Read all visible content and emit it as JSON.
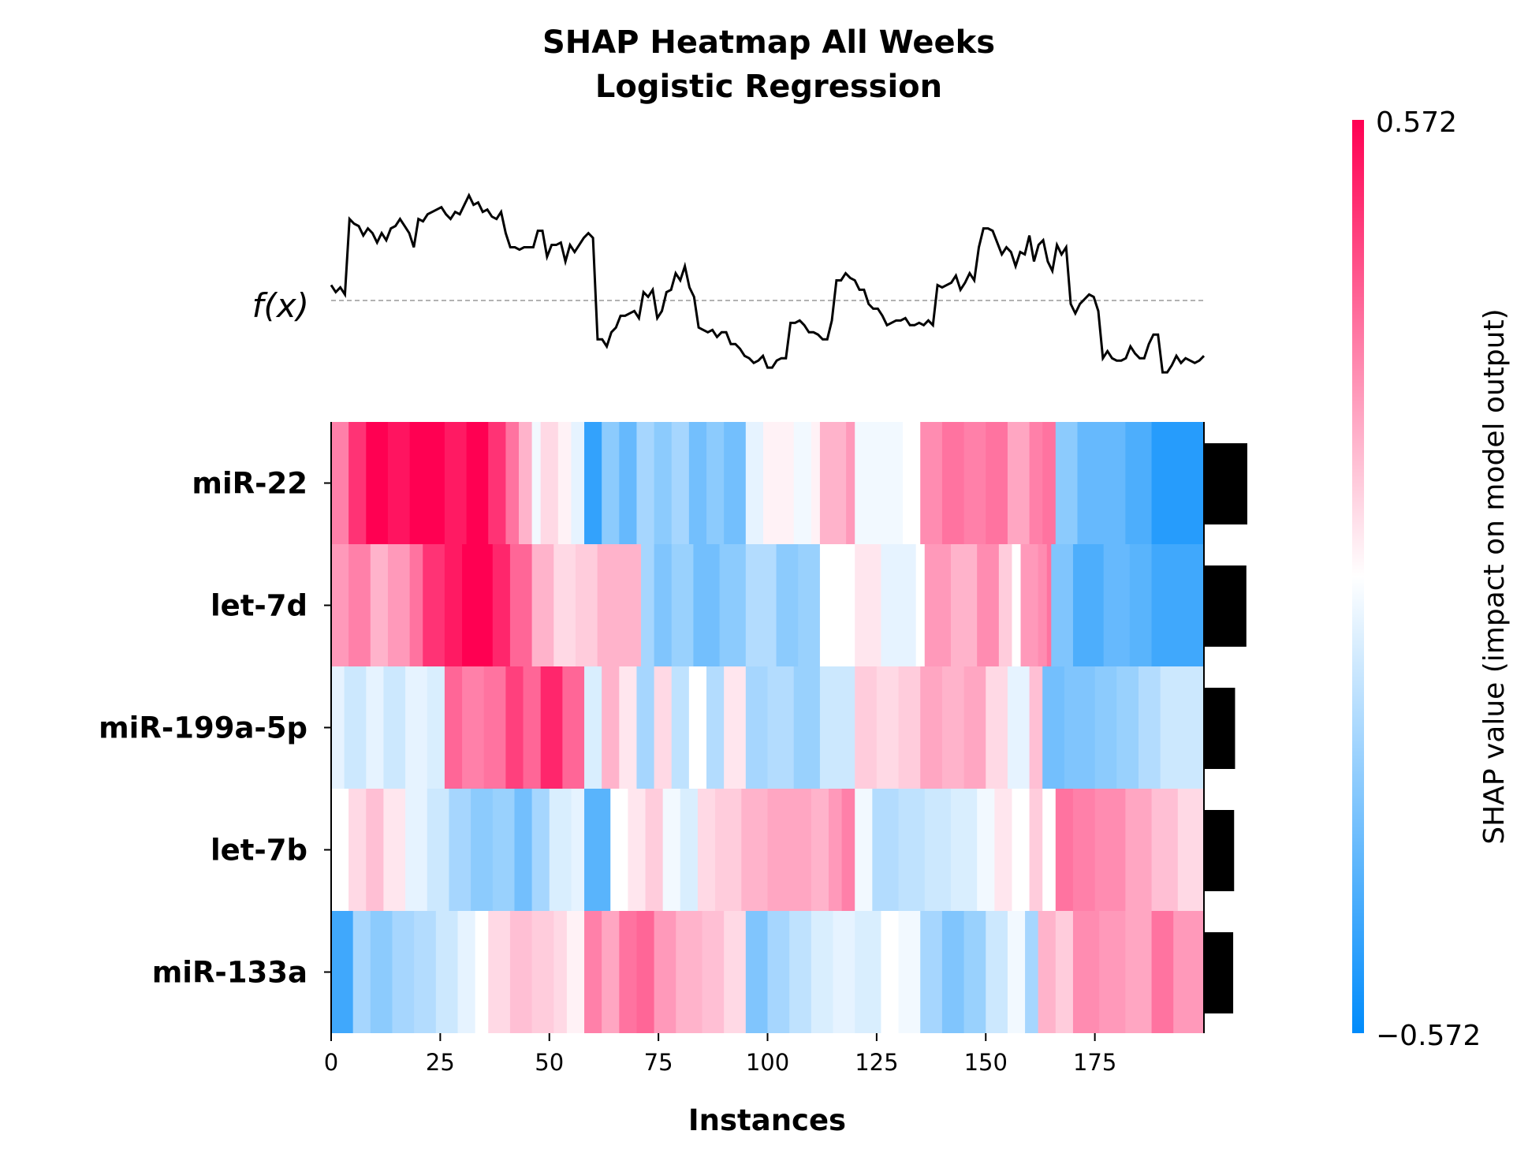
{
  "chart_data": {
    "type": "heatmap",
    "title": [
      "SHAP Heatmap All Weeks",
      "Logistic Regression"
    ],
    "xlabel": "Instances",
    "fx_label": "f(x)",
    "xlim": [
      0,
      200
    ],
    "xticks": [
      0,
      25,
      50,
      75,
      100,
      125,
      150,
      175
    ],
    "features": [
      "miR-22",
      "let-7d",
      "miR-199a-5p",
      "let-7b",
      "miR-133a"
    ],
    "importance": [
      0.46,
      0.45,
      0.33,
      0.32,
      0.31
    ],
    "colorbar": {
      "min": -0.572,
      "max": 0.572,
      "min_label": "−0.572",
      "max_label": "0.572",
      "label": "SHAP value (impact on model output)",
      "colors": [
        "#008bfb",
        "#ffffff",
        "#ff0052"
      ]
    },
    "segments": [
      [
        [
          0,
          0.5
        ],
        [
          4,
          0.8
        ],
        [
          8,
          1.0
        ],
        [
          13,
          0.92
        ],
        [
          18,
          1.0
        ],
        [
          26,
          0.9
        ],
        [
          31,
          1.0
        ],
        [
          36,
          0.8
        ],
        [
          40,
          0.55
        ],
        [
          43,
          0.3
        ],
        [
          46,
          -0.05
        ],
        [
          48,
          0.15
        ],
        [
          52,
          0.05
        ],
        [
          55,
          -0.1
        ],
        [
          58,
          -0.8
        ],
        [
          62,
          -0.45
        ],
        [
          66,
          -0.6
        ],
        [
          70,
          -0.35
        ],
        [
          74,
          -0.45
        ],
        [
          78,
          -0.35
        ],
        [
          82,
          -0.55
        ],
        [
          86,
          -0.45
        ],
        [
          90,
          -0.55
        ],
        [
          95,
          -0.1
        ],
        [
          99,
          0.05
        ],
        [
          106,
          -0.05
        ],
        [
          110,
          0.05
        ],
        [
          112,
          0.3
        ],
        [
          118,
          0.4
        ],
        [
          120,
          -0.05
        ],
        [
          126,
          -0.05
        ],
        [
          131,
          0.0
        ],
        [
          135,
          0.45
        ],
        [
          140,
          0.55
        ],
        [
          145,
          0.5
        ],
        [
          150,
          0.55
        ],
        [
          155,
          0.35
        ],
        [
          160,
          0.5
        ],
        [
          163,
          0.55
        ],
        [
          166,
          -0.45
        ],
        [
          171,
          -0.6
        ],
        [
          177,
          -0.6
        ],
        [
          182,
          -0.7
        ],
        [
          188,
          -0.85
        ],
        [
          200,
          -0.85
        ]
      ],
      [
        [
          0,
          0.4
        ],
        [
          4,
          0.5
        ],
        [
          9,
          0.3
        ],
        [
          13,
          0.4
        ],
        [
          18,
          0.55
        ],
        [
          21,
          0.8
        ],
        [
          26,
          0.9
        ],
        [
          30,
          1.0
        ],
        [
          37,
          0.85
        ],
        [
          41,
          0.6
        ],
        [
          46,
          0.3
        ],
        [
          51,
          0.15
        ],
        [
          56,
          0.2
        ],
        [
          61,
          0.3
        ],
        [
          71,
          -0.35
        ],
        [
          74,
          -0.5
        ],
        [
          78,
          -0.4
        ],
        [
          83,
          -0.55
        ],
        [
          89,
          -0.45
        ],
        [
          95,
          -0.3
        ],
        [
          102,
          -0.45
        ],
        [
          107,
          -0.4
        ],
        [
          112,
          0.0
        ],
        [
          120,
          0.1
        ],
        [
          126,
          -0.1
        ],
        [
          134,
          0.0
        ],
        [
          136,
          0.4
        ],
        [
          142,
          0.3
        ],
        [
          148,
          0.45
        ],
        [
          153,
          0.2
        ],
        [
          156,
          0.0
        ],
        [
          158,
          0.4
        ],
        [
          162,
          0.45
        ],
        [
          164,
          0.55
        ],
        [
          165,
          -0.5
        ],
        [
          170,
          -0.7
        ],
        [
          177,
          -0.6
        ],
        [
          183,
          -0.65
        ],
        [
          188,
          -0.75
        ],
        [
          200,
          -0.75
        ]
      ],
      [
        [
          0,
          -0.1
        ],
        [
          3,
          -0.2
        ],
        [
          8,
          -0.1
        ],
        [
          12,
          -0.2
        ],
        [
          17,
          -0.1
        ],
        [
          22,
          -0.15
        ],
        [
          26,
          0.6
        ],
        [
          30,
          0.5
        ],
        [
          35,
          0.55
        ],
        [
          40,
          0.75
        ],
        [
          44,
          0.6
        ],
        [
          48,
          0.85
        ],
        [
          53,
          0.6
        ],
        [
          58,
          -0.15
        ],
        [
          62,
          0.3
        ],
        [
          66,
          0.1
        ],
        [
          70,
          -0.35
        ],
        [
          74,
          0.15
        ],
        [
          78,
          -0.25
        ],
        [
          82,
          0.0
        ],
        [
          86,
          -0.3
        ],
        [
          90,
          0.1
        ],
        [
          95,
          -0.35
        ],
        [
          100,
          -0.3
        ],
        [
          106,
          -0.4
        ],
        [
          112,
          -0.2
        ],
        [
          120,
          0.2
        ],
        [
          125,
          0.15
        ],
        [
          130,
          0.2
        ],
        [
          135,
          0.35
        ],
        [
          140,
          0.3
        ],
        [
          145,
          0.35
        ],
        [
          150,
          0.15
        ],
        [
          155,
          -0.1
        ],
        [
          160,
          0.25
        ],
        [
          163,
          -0.55
        ],
        [
          168,
          -0.5
        ],
        [
          175,
          -0.45
        ],
        [
          180,
          -0.4
        ],
        [
          185,
          -0.3
        ],
        [
          190,
          -0.2
        ],
        [
          200,
          -0.2
        ]
      ],
      [
        [
          0,
          0.0
        ],
        [
          4,
          0.15
        ],
        [
          8,
          0.25
        ],
        [
          12,
          0.1
        ],
        [
          17,
          -0.1
        ],
        [
          22,
          -0.2
        ],
        [
          27,
          -0.35
        ],
        [
          32,
          -0.45
        ],
        [
          37,
          -0.4
        ],
        [
          42,
          -0.55
        ],
        [
          46,
          -0.35
        ],
        [
          50,
          -0.15
        ],
        [
          55,
          -0.1
        ],
        [
          58,
          -0.65
        ],
        [
          64,
          0.0
        ],
        [
          68,
          0.1
        ],
        [
          72,
          0.2
        ],
        [
          76,
          -0.05
        ],
        [
          80,
          -0.15
        ],
        [
          84,
          0.15
        ],
        [
          88,
          0.2
        ],
        [
          94,
          0.3
        ],
        [
          100,
          0.35
        ],
        [
          106,
          0.35
        ],
        [
          110,
          0.3
        ],
        [
          114,
          0.4
        ],
        [
          117,
          0.5
        ],
        [
          120,
          -0.05
        ],
        [
          124,
          -0.3
        ],
        [
          130,
          -0.25
        ],
        [
          136,
          -0.2
        ],
        [
          142,
          -0.15
        ],
        [
          148,
          -0.05
        ],
        [
          152,
          0.1
        ],
        [
          156,
          0.0
        ],
        [
          160,
          0.2
        ],
        [
          163,
          0.0
        ],
        [
          166,
          0.55
        ],
        [
          170,
          0.5
        ],
        [
          175,
          0.45
        ],
        [
          182,
          0.35
        ],
        [
          188,
          0.25
        ],
        [
          194,
          0.15
        ],
        [
          200,
          0.15
        ]
      ],
      [
        [
          0,
          -0.75
        ],
        [
          5,
          -0.35
        ],
        [
          9,
          -0.45
        ],
        [
          14,
          -0.35
        ],
        [
          19,
          -0.3
        ],
        [
          24,
          -0.2
        ],
        [
          29,
          -0.1
        ],
        [
          33,
          0.0
        ],
        [
          36,
          0.15
        ],
        [
          41,
          0.25
        ],
        [
          46,
          0.2
        ],
        [
          51,
          0.15
        ],
        [
          54,
          0.05
        ],
        [
          58,
          0.5
        ],
        [
          62,
          0.35
        ],
        [
          66,
          0.55
        ],
        [
          70,
          0.6
        ],
        [
          74,
          0.4
        ],
        [
          79,
          0.3
        ],
        [
          85,
          0.25
        ],
        [
          90,
          0.15
        ],
        [
          95,
          -0.5
        ],
        [
          100,
          -0.35
        ],
        [
          105,
          -0.25
        ],
        [
          110,
          -0.15
        ],
        [
          115,
          -0.1
        ],
        [
          120,
          -0.15
        ],
        [
          126,
          0.0
        ],
        [
          130,
          -0.05
        ],
        [
          135,
          -0.35
        ],
        [
          140,
          -0.5
        ],
        [
          145,
          -0.4
        ],
        [
          150,
          -0.2
        ],
        [
          155,
          -0.05
        ],
        [
          159,
          -0.35
        ],
        [
          162,
          0.3
        ],
        [
          166,
          0.2
        ],
        [
          170,
          0.45
        ],
        [
          176,
          0.4
        ],
        [
          182,
          0.35
        ],
        [
          188,
          0.55
        ],
        [
          193,
          0.4
        ],
        [
          200,
          0.4
        ]
      ]
    ],
    "fx_points": [
      [
        0,
        0.58
      ],
      [
        1,
        0.55
      ],
      [
        2,
        0.57
      ],
      [
        3,
        0.54
      ],
      [
        4,
        0.86
      ],
      [
        5,
        0.84
      ],
      [
        6,
        0.83
      ],
      [
        7,
        0.79
      ],
      [
        8,
        0.82
      ],
      [
        9,
        0.8
      ],
      [
        10,
        0.76
      ],
      [
        11,
        0.8
      ],
      [
        12,
        0.77
      ],
      [
        13,
        0.82
      ],
      [
        14,
        0.83
      ],
      [
        15,
        0.86
      ],
      [
        16,
        0.83
      ],
      [
        17,
        0.8
      ],
      [
        18,
        0.74
      ],
      [
        19,
        0.86
      ],
      [
        20,
        0.85
      ],
      [
        21,
        0.88
      ],
      [
        22,
        0.89
      ],
      [
        23,
        0.9
      ],
      [
        24,
        0.91
      ],
      [
        25,
        0.88
      ],
      [
        26,
        0.86
      ],
      [
        27,
        0.89
      ],
      [
        28,
        0.88
      ],
      [
        29,
        0.92
      ],
      [
        30,
        0.96
      ],
      [
        31,
        0.92
      ],
      [
        32,
        0.93
      ],
      [
        33,
        0.89
      ],
      [
        34,
        0.9
      ],
      [
        35,
        0.87
      ],
      [
        36,
        0.86
      ],
      [
        37,
        0.89
      ],
      [
        38,
        0.8
      ],
      [
        39,
        0.74
      ],
      [
        40,
        0.74
      ],
      [
        41,
        0.73
      ],
      [
        42,
        0.74
      ],
      [
        43,
        0.74
      ],
      [
        44,
        0.74
      ],
      [
        45,
        0.81
      ],
      [
        46,
        0.81
      ],
      [
        47,
        0.7
      ],
      [
        48,
        0.75
      ],
      [
        49,
        0.75
      ],
      [
        50,
        0.76
      ],
      [
        51,
        0.68
      ],
      [
        52,
        0.75
      ],
      [
        53,
        0.72
      ],
      [
        54,
        0.75
      ],
      [
        55,
        0.78
      ],
      [
        56,
        0.8
      ],
      [
        57,
        0.78
      ],
      [
        58,
        0.35
      ],
      [
        59,
        0.35
      ],
      [
        60,
        0.32
      ],
      [
        61,
        0.38
      ],
      [
        62,
        0.4
      ],
      [
        63,
        0.45
      ],
      [
        64,
        0.45
      ],
      [
        65,
        0.46
      ],
      [
        66,
        0.47
      ],
      [
        67,
        0.44
      ],
      [
        68,
        0.55
      ],
      [
        69,
        0.53
      ],
      [
        70,
        0.56
      ],
      [
        71,
        0.44
      ],
      [
        72,
        0.47
      ],
      [
        73,
        0.55
      ],
      [
        74,
        0.56
      ],
      [
        75,
        0.63
      ],
      [
        76,
        0.6
      ],
      [
        77,
        0.66
      ],
      [
        78,
        0.57
      ],
      [
        79,
        0.53
      ],
      [
        80,
        0.4
      ],
      [
        81,
        0.39
      ],
      [
        82,
        0.38
      ],
      [
        83,
        0.39
      ],
      [
        84,
        0.36
      ],
      [
        85,
        0.38
      ],
      [
        86,
        0.38
      ],
      [
        87,
        0.33
      ],
      [
        88,
        0.33
      ],
      [
        89,
        0.31
      ],
      [
        90,
        0.28
      ],
      [
        91,
        0.27
      ],
      [
        92,
        0.25
      ],
      [
        93,
        0.26
      ],
      [
        94,
        0.28
      ],
      [
        95,
        0.23
      ],
      [
        96,
        0.23
      ],
      [
        97,
        0.26
      ],
      [
        98,
        0.27
      ],
      [
        99,
        0.27
      ],
      [
        100,
        0.42
      ],
      [
        101,
        0.42
      ],
      [
        102,
        0.43
      ],
      [
        103,
        0.41
      ],
      [
        104,
        0.38
      ],
      [
        105,
        0.38
      ],
      [
        106,
        0.37
      ],
      [
        107,
        0.35
      ],
      [
        108,
        0.35
      ],
      [
        109,
        0.43
      ],
      [
        110,
        0.6
      ],
      [
        111,
        0.6
      ],
      [
        112,
        0.63
      ],
      [
        113,
        0.61
      ],
      [
        114,
        0.6
      ],
      [
        115,
        0.56
      ],
      [
        116,
        0.56
      ],
      [
        117,
        0.5
      ],
      [
        118,
        0.48
      ],
      [
        119,
        0.48
      ],
      [
        120,
        0.45
      ],
      [
        121,
        0.41
      ],
      [
        122,
        0.42
      ],
      [
        123,
        0.43
      ],
      [
        124,
        0.43
      ],
      [
        125,
        0.44
      ],
      [
        126,
        0.41
      ],
      [
        127,
        0.41
      ],
      [
        128,
        0.42
      ],
      [
        129,
        0.41
      ],
      [
        130,
        0.43
      ],
      [
        131,
        0.41
      ],
      [
        132,
        0.58
      ],
      [
        133,
        0.57
      ],
      [
        134,
        0.58
      ],
      [
        135,
        0.59
      ],
      [
        136,
        0.62
      ],
      [
        137,
        0.56
      ],
      [
        138,
        0.59
      ],
      [
        139,
        0.63
      ],
      [
        140,
        0.6
      ],
      [
        141,
        0.74
      ],
      [
        142,
        0.82
      ],
      [
        143,
        0.82
      ],
      [
        144,
        0.81
      ],
      [
        145,
        0.76
      ],
      [
        146,
        0.71
      ],
      [
        147,
        0.74
      ],
      [
        148,
        0.72
      ],
      [
        149,
        0.66
      ],
      [
        150,
        0.72
      ],
      [
        151,
        0.71
      ],
      [
        152,
        0.79
      ],
      [
        153,
        0.68
      ],
      [
        154,
        0.75
      ],
      [
        155,
        0.77
      ],
      [
        156,
        0.68
      ],
      [
        157,
        0.64
      ],
      [
        158,
        0.75
      ],
      [
        159,
        0.71
      ],
      [
        160,
        0.74
      ],
      [
        161,
        0.5
      ],
      [
        162,
        0.46
      ],
      [
        163,
        0.5
      ],
      [
        164,
        0.52
      ],
      [
        165,
        0.54
      ],
      [
        166,
        0.53
      ],
      [
        167,
        0.47
      ],
      [
        168,
        0.27
      ],
      [
        169,
        0.3
      ],
      [
        170,
        0.27
      ],
      [
        171,
        0.26
      ],
      [
        172,
        0.26
      ],
      [
        173,
        0.27
      ],
      [
        174,
        0.32
      ],
      [
        175,
        0.29
      ],
      [
        176,
        0.27
      ],
      [
        177,
        0.27
      ],
      [
        178,
        0.33
      ],
      [
        179,
        0.37
      ],
      [
        180,
        0.37
      ],
      [
        181,
        0.21
      ],
      [
        182,
        0.21
      ],
      [
        183,
        0.24
      ],
      [
        184,
        0.28
      ],
      [
        185,
        0.25
      ],
      [
        186,
        0.27
      ],
      [
        187,
        0.26
      ],
      [
        188,
        0.25
      ],
      [
        189,
        0.26
      ],
      [
        190,
        0.28
      ]
    ]
  }
}
